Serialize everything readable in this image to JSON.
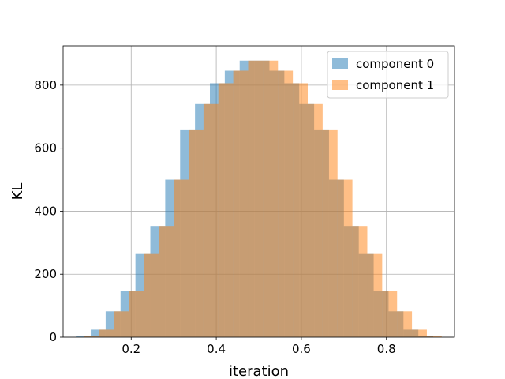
{
  "chart_data": {
    "type": "histogram",
    "xlabel": "iteration",
    "ylabel": "KL",
    "xlim": [
      0.04,
      0.96
    ],
    "ylim": [
      0,
      925
    ],
    "xticks": [
      0.2,
      0.4,
      0.6,
      0.8
    ],
    "yticks": [
      0,
      200,
      400,
      600,
      800
    ],
    "tick_labels_x": [
      "0.2",
      "0.4",
      "0.6",
      "0.8"
    ],
    "tick_labels_y": [
      "0",
      "200",
      "400",
      "600",
      "800"
    ],
    "grid": true,
    "legend_position": "top-right",
    "series": [
      {
        "name": "component 0",
        "color": "#1f77b4",
        "alpha": 0.5,
        "bin_edges": [
          0.07,
          0.105,
          0.14,
          0.175,
          0.21,
          0.245,
          0.28,
          0.315,
          0.35,
          0.385,
          0.42,
          0.455,
          0.49,
          0.525,
          0.56,
          0.595,
          0.63,
          0.665,
          0.7,
          0.735,
          0.77,
          0.805,
          0.84,
          0.875,
          0.91
        ],
        "counts": [
          4,
          24,
          82,
          146,
          264,
          353,
          500,
          657,
          740,
          806,
          846,
          878,
          878,
          846,
          806,
          740,
          657,
          500,
          353,
          264,
          146,
          82,
          24,
          4
        ]
      },
      {
        "name": "component 1",
        "color": "#ff7f0e",
        "alpha": 0.5,
        "bin_edges": [
          0.09,
          0.125,
          0.16,
          0.195,
          0.23,
          0.265,
          0.3,
          0.335,
          0.37,
          0.405,
          0.44,
          0.475,
          0.51,
          0.545,
          0.58,
          0.615,
          0.65,
          0.685,
          0.72,
          0.755,
          0.79,
          0.825,
          0.86,
          0.895,
          0.93
        ],
        "counts": [
          4,
          24,
          82,
          146,
          264,
          353,
          500,
          657,
          740,
          806,
          846,
          878,
          878,
          846,
          806,
          740,
          657,
          500,
          353,
          264,
          146,
          82,
          24,
          4
        ]
      }
    ]
  }
}
